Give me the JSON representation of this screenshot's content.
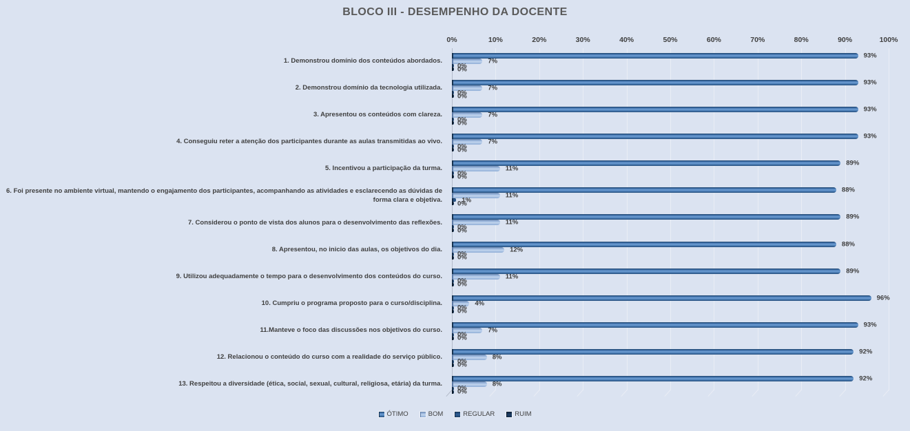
{
  "title": "BLOCO III - DESEMPENHO DA DOCENTE",
  "chart_data": {
    "type": "bar",
    "orientation": "horizontal",
    "title": "BLOCO III - DESEMPENHO DA DOCENTE",
    "categories": [
      "1. Demonstrou domínio dos conteúdos abordados.",
      "2. Demonstrou domínio da tecnologia utilizada.",
      "3. Apresentou os conteúdos com clareza.",
      "4. Conseguiu reter a atenção dos participantes durante as aulas transmitidas ao vivo.",
      "5. Incentivou a participação da turma.",
      "6. Foi presente no ambiente virtual, mantendo o engajamento dos participantes, acompanhando as atividades e esclarecendo as dúvidas de forma clara e objetiva.",
      "7. Considerou o ponto de vista dos alunos para o desenvolvimento das reflexões.",
      "8. Apresentou, no inicio das aulas, os objetivos do dia.",
      "9. Utilizou adequadamente o tempo para o desenvolvimento dos conteúdos do curso.",
      "10. Cumpriu o programa proposto para o curso/disciplina.",
      "11.Manteve o foco das discussões nos objetivos do curso.",
      "12. Relacionou o conteúdo do curso com a realidade do serviço público.",
      "13. Respeitou a diversidade (ética, social, sexual, cultural, religiosa, etária) da turma."
    ],
    "series": [
      {
        "name": "ÓTIMO",
        "color": "#4F81BD",
        "values": [
          93,
          93,
          93,
          93,
          89,
          88,
          89,
          88,
          89,
          96,
          93,
          92,
          92
        ]
      },
      {
        "name": "BOM",
        "color": "#95B3D7",
        "values": [
          7,
          7,
          7,
          7,
          11,
          11,
          11,
          12,
          11,
          4,
          7,
          8,
          8
        ]
      },
      {
        "name": "REGULAR",
        "color": "#2E5C8A",
        "values": [
          0,
          0,
          0,
          0,
          0,
          1,
          0,
          0,
          0,
          0,
          0,
          0,
          0
        ]
      },
      {
        "name": "RUIM",
        "color": "#17375E",
        "values": [
          0,
          0,
          0,
          0,
          0,
          0,
          0,
          0,
          0,
          0,
          0,
          0,
          0
        ]
      }
    ],
    "x_ticks": [
      "0%",
      "10%",
      "20%",
      "30%",
      "40%",
      "50%",
      "60%",
      "70%",
      "80%",
      "90%",
      "100%"
    ],
    "xlim": [
      0,
      100
    ],
    "grid": true,
    "legend_position": "bottom",
    "data_labels": true,
    "background_color": "#DBE3F1",
    "title_color": "#595959"
  }
}
